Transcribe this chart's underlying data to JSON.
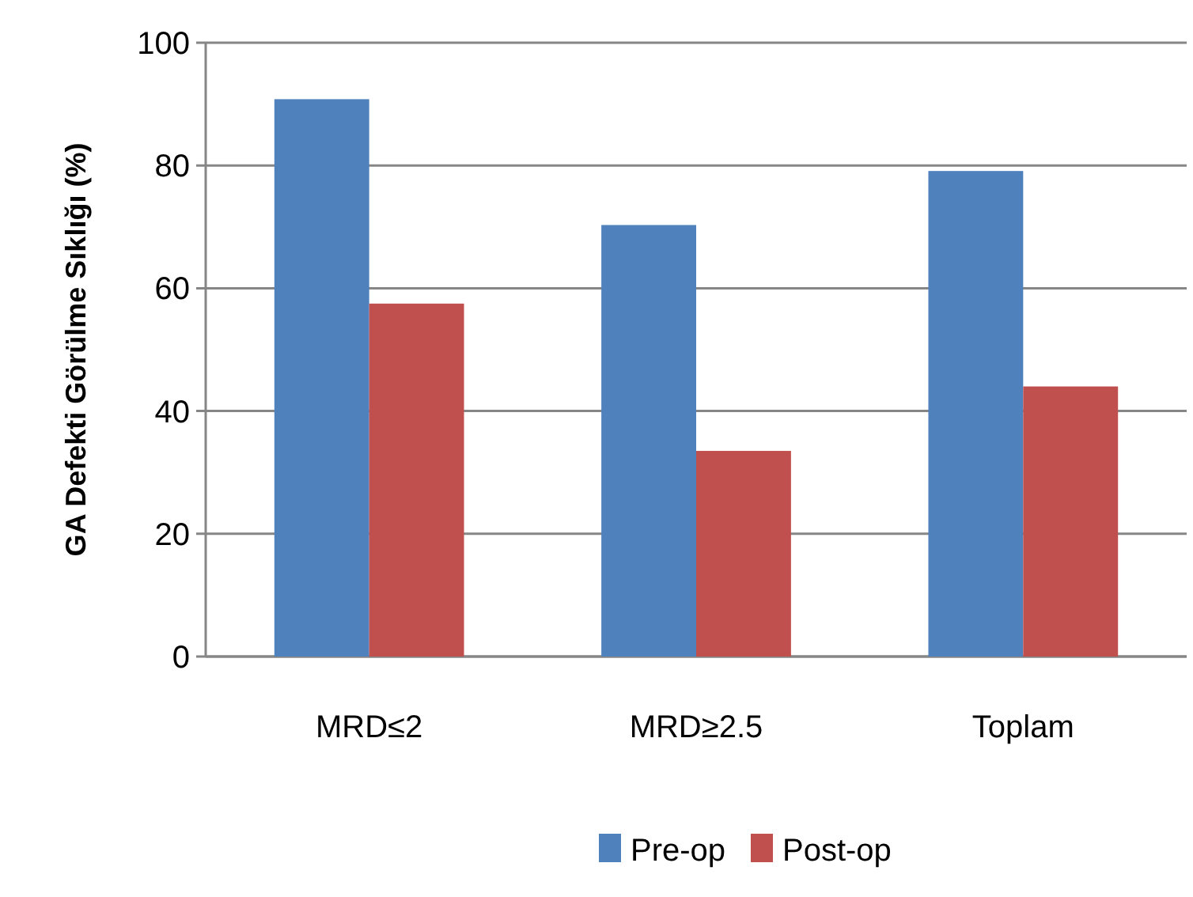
{
  "chart_data": {
    "type": "bar",
    "ylabel": "GA Defekti Görülme Sıklığı (%)",
    "categories": [
      "MRD≤2",
      "MRD≥2.5",
      "Toplam"
    ],
    "series": [
      {
        "name": "Pre-op",
        "color": "#4f81bd",
        "values": [
          90.8,
          70.3,
          79.1
        ]
      },
      {
        "name": "Post-op",
        "color": "#c0504d",
        "values": [
          57.5,
          33.5,
          44
        ]
      }
    ],
    "ylim": [
      0,
      100
    ],
    "yticks": [
      0,
      20,
      40,
      60,
      80,
      100
    ],
    "grid": "y",
    "legend": "bottom"
  }
}
